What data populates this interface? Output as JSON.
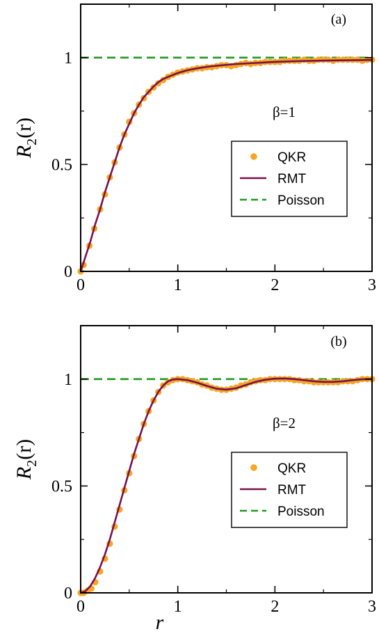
{
  "colors": {
    "qkr": "#f5a623",
    "rmt": "#7b0f4a",
    "poisson": "#1e9a1e",
    "axis": "#000000"
  },
  "chart_data": [
    {
      "type": "line",
      "panel_label": "(a)",
      "annotation": "β=1",
      "ylabel_main": "R",
      "ylabel_sub": "2",
      "ylabel_arg": "(r)",
      "xlabel": "",
      "xlim": [
        0,
        3
      ],
      "ylim": [
        0,
        1.25
      ],
      "xticks": [
        "0",
        "1",
        "2",
        "3"
      ],
      "yticks": [
        "0",
        "0.5",
        "1"
      ],
      "ytick_values": [
        0,
        0.5,
        1
      ],
      "xtick_values": [
        0,
        1,
        2,
        3
      ],
      "legend_position": "center-right",
      "legend": [
        "QKR",
        "RMT",
        "Poisson"
      ],
      "series": [
        {
          "name": "QKR",
          "style": "markers",
          "x": [
            0,
            0.03,
            0.09,
            0.14,
            0.2,
            0.25,
            0.3,
            0.35,
            0.4,
            0.45,
            0.5,
            0.55,
            0.6,
            0.65,
            0.7,
            0.75,
            0.8,
            0.85,
            0.9,
            0.95,
            1.0,
            1.05,
            1.1,
            1.15,
            1.2,
            1.25,
            1.3,
            1.35,
            1.4,
            1.45,
            1.5,
            1.55,
            1.6,
            1.65,
            1.7,
            1.75,
            1.8,
            1.85,
            1.9,
            1.95,
            2.0,
            2.05,
            2.1,
            2.15,
            2.2,
            2.25,
            2.3,
            2.35,
            2.4,
            2.45,
            2.5,
            2.55,
            2.6,
            2.65,
            2.7,
            2.75,
            2.8,
            2.85,
            2.9,
            2.95,
            3.0
          ],
          "y": [
            0,
            0.03,
            0.12,
            0.2,
            0.29,
            0.36,
            0.44,
            0.51,
            0.58,
            0.64,
            0.7,
            0.74,
            0.78,
            0.81,
            0.84,
            0.86,
            0.88,
            0.895,
            0.91,
            0.92,
            0.93,
            0.935,
            0.94,
            0.945,
            0.95,
            0.95,
            0.955,
            0.955,
            0.96,
            0.965,
            0.965,
            0.96,
            0.965,
            0.97,
            0.975,
            0.97,
            0.975,
            0.975,
            0.98,
            0.98,
            0.98,
            0.98,
            0.985,
            0.985,
            0.985,
            0.985,
            0.99,
            0.985,
            0.985,
            0.99,
            0.99,
            0.99,
            0.985,
            0.99,
            0.99,
            0.99,
            0.99,
            0.99,
            0.985,
            0.99,
            0.99
          ]
        },
        {
          "name": "RMT",
          "style": "line",
          "x": [
            0,
            0.05,
            0.1,
            0.15,
            0.2,
            0.25,
            0.3,
            0.35,
            0.4,
            0.45,
            0.5,
            0.55,
            0.6,
            0.65,
            0.7,
            0.75,
            0.8,
            0.85,
            0.9,
            1.0,
            1.1,
            1.2,
            1.3,
            1.4,
            1.5,
            1.6,
            1.8,
            2.0,
            2.2,
            2.5,
            2.8,
            3.0
          ],
          "y": [
            0,
            0.07,
            0.14,
            0.22,
            0.29,
            0.37,
            0.44,
            0.51,
            0.58,
            0.64,
            0.69,
            0.74,
            0.78,
            0.815,
            0.84,
            0.865,
            0.885,
            0.9,
            0.91,
            0.928,
            0.941,
            0.95,
            0.957,
            0.962,
            0.966,
            0.97,
            0.975,
            0.98,
            0.983,
            0.986,
            0.988,
            0.989
          ]
        },
        {
          "name": "Poisson",
          "style": "dashed",
          "x": [
            0,
            3
          ],
          "y": [
            1,
            1
          ]
        }
      ]
    },
    {
      "type": "line",
      "panel_label": "(b)",
      "annotation": "β=2",
      "ylabel_main": "R",
      "ylabel_sub": "2",
      "ylabel_arg": "(r)",
      "xlabel": "r",
      "xlim": [
        0,
        3
      ],
      "ylim": [
        0,
        1.25
      ],
      "xticks": [
        "0",
        "1",
        "2",
        "3"
      ],
      "yticks": [
        "0",
        "0.5",
        "1"
      ],
      "ytick_values": [
        0,
        0.5,
        1
      ],
      "xtick_values": [
        0,
        1,
        2,
        3
      ],
      "legend_position": "center-right",
      "legend": [
        "QKR",
        "RMT",
        "Poisson"
      ],
      "series": [
        {
          "name": "QKR",
          "style": "markers",
          "x": [
            0,
            0.03,
            0.07,
            0.11,
            0.15,
            0.2,
            0.25,
            0.3,
            0.35,
            0.4,
            0.45,
            0.5,
            0.55,
            0.6,
            0.65,
            0.7,
            0.75,
            0.8,
            0.85,
            0.9,
            0.95,
            1.0,
            1.05,
            1.1,
            1.15,
            1.2,
            1.25,
            1.3,
            1.35,
            1.4,
            1.45,
            1.5,
            1.55,
            1.6,
            1.65,
            1.7,
            1.75,
            1.8,
            1.85,
            1.9,
            1.95,
            2.0,
            2.05,
            2.1,
            2.15,
            2.2,
            2.25,
            2.3,
            2.35,
            2.4,
            2.45,
            2.5,
            2.55,
            2.6,
            2.65,
            2.7,
            2.75,
            2.8,
            2.85,
            2.9,
            2.95,
            3.0
          ],
          "y": [
            0,
            0.0,
            0.01,
            0.02,
            0.05,
            0.1,
            0.16,
            0.23,
            0.31,
            0.39,
            0.48,
            0.56,
            0.64,
            0.72,
            0.79,
            0.85,
            0.9,
            0.94,
            0.97,
            0.985,
            0.995,
            1.0,
            1.0,
            0.995,
            0.99,
            0.985,
            0.975,
            0.97,
            0.96,
            0.955,
            0.95,
            0.95,
            0.955,
            0.96,
            0.97,
            0.975,
            0.985,
            0.99,
            0.995,
            0.995,
            1.0,
            1.0,
            1.0,
            1.0,
            1.0,
            0.995,
            0.995,
            0.99,
            0.99,
            0.985,
            0.985,
            0.985,
            0.985,
            0.985,
            0.985,
            0.99,
            0.99,
            0.99,
            0.995,
            1.0,
            1.0,
            1.0
          ]
        },
        {
          "name": "RMT",
          "style": "line",
          "x": [
            0,
            0.05,
            0.1,
            0.15,
            0.2,
            0.25,
            0.3,
            0.35,
            0.4,
            0.45,
            0.5,
            0.55,
            0.6,
            0.65,
            0.7,
            0.75,
            0.8,
            0.85,
            0.9,
            0.95,
            1.0,
            1.1,
            1.2,
            1.3,
            1.4,
            1.5,
            1.6,
            1.7,
            1.8,
            1.9,
            2.0,
            2.1,
            2.2,
            2.3,
            2.4,
            2.5,
            2.6,
            2.7,
            2.8,
            2.9,
            3.0
          ],
          "y": [
            0,
            0.008,
            0.032,
            0.07,
            0.12,
            0.18,
            0.25,
            0.33,
            0.41,
            0.49,
            0.57,
            0.65,
            0.72,
            0.79,
            0.85,
            0.9,
            0.94,
            0.97,
            0.99,
            0.998,
            1.0,
            0.995,
            0.983,
            0.968,
            0.955,
            0.951,
            0.957,
            0.972,
            0.987,
            0.997,
            1.002,
            1.003,
            1.0,
            0.995,
            0.99,
            0.987,
            0.987,
            0.99,
            0.995,
            0.999,
            1.0
          ]
        },
        {
          "name": "Poisson",
          "style": "dashed",
          "x": [
            0,
            3
          ],
          "y": [
            1,
            1
          ]
        }
      ]
    }
  ]
}
